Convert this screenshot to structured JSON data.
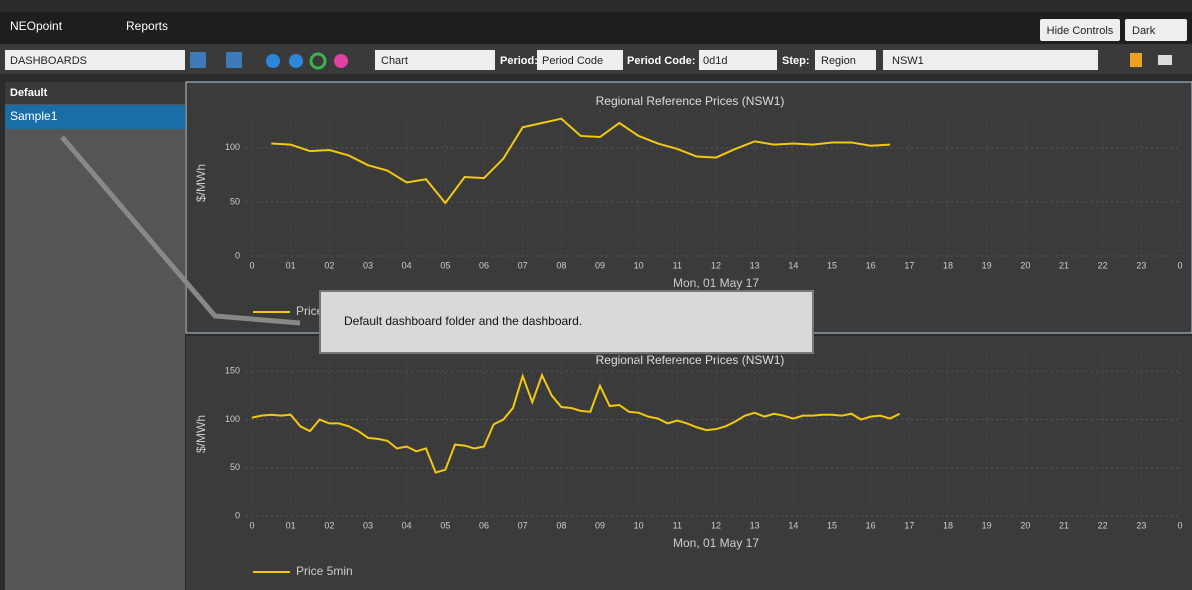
{
  "ui": {
    "header": {
      "brand": "NEOpoint",
      "menu": "Reports",
      "hide_controls": "Hide Controls",
      "theme": "Dark"
    },
    "toolbar": {
      "dashboards": "DASHBOARDS",
      "view": "Chart",
      "period_label": "Period:",
      "period": "Period Code",
      "period_code_label": "Period Code:",
      "period_code": "0d1d",
      "step_label": "Step:",
      "step": "Region",
      "region": "NSW1"
    },
    "sidebar": {
      "folder": "Default",
      "dashboard": "Sample1"
    },
    "callout": "Default dashboard folder and the dashboard."
  },
  "chart_data": [
    {
      "type": "line",
      "title": "Regional Reference Prices (NSW1)",
      "y_label": "$/MWh",
      "x_label": "Mon, 01 May 17",
      "xlim": [
        0,
        24
      ],
      "ylim": [
        0,
        135
      ],
      "yticks": [
        0,
        50,
        100
      ],
      "xticks": [
        0,
        {
          "value": 1,
          "label": "01"
        },
        {
          "value": 2,
          "label": "02"
        },
        {
          "value": 3,
          "label": "03"
        },
        {
          "value": 4,
          "label": "04"
        },
        {
          "value": 5,
          "label": "05"
        },
        {
          "value": 6,
          "label": "06"
        },
        {
          "value": 7,
          "label": "07"
        },
        {
          "value": 8,
          "label": "08"
        },
        {
          "value": 9,
          "label": "09"
        },
        10,
        11,
        12,
        13,
        14,
        15,
        16,
        17,
        18,
        19,
        20,
        21,
        22,
        23,
        {
          "value": 24,
          "label": "0"
        }
      ],
      "grid": true,
      "x": [
        0.5,
        1,
        1.5,
        2,
        2.5,
        3,
        3.5,
        4,
        4.5,
        5,
        5.5,
        6,
        6.5,
        7,
        7.5,
        8,
        8.5,
        9,
        9.5,
        10,
        10.5,
        11,
        11.5,
        12,
        12.5,
        13,
        13.5,
        14,
        14.5,
        15,
        15.5,
        16,
        16.5
      ],
      "series": [
        {
          "name": "Price",
          "color": "#f2c811",
          "values": [
            104,
            103,
            97,
            98,
            93,
            84,
            79,
            68,
            71,
            49,
            73,
            72,
            90,
            119,
            123,
            127,
            111,
            110,
            123,
            111,
            104,
            99,
            92,
            91,
            99,
            106,
            103,
            104,
            103,
            105,
            105,
            102,
            103
          ]
        }
      ]
    },
    {
      "type": "line",
      "title": "Regional Reference Prices (NSW1)",
      "y_label": "$/MWh",
      "x_label": "Mon, 01 May 17",
      "xlim": [
        0,
        24
      ],
      "ylim": [
        0,
        170
      ],
      "yticks": [
        0,
        50,
        100,
        150
      ],
      "xticks": [
        0,
        {
          "value": 1,
          "label": "01"
        },
        {
          "value": 2,
          "label": "02"
        },
        {
          "value": 3,
          "label": "03"
        },
        {
          "value": 4,
          "label": "04"
        },
        {
          "value": 5,
          "label": "05"
        },
        {
          "value": 6,
          "label": "06"
        },
        {
          "value": 7,
          "label": "07"
        },
        {
          "value": 8,
          "label": "08"
        },
        {
          "value": 9,
          "label": "09"
        },
        10,
        11,
        12,
        13,
        14,
        15,
        16,
        17,
        18,
        19,
        20,
        21,
        22,
        23,
        {
          "value": 24,
          "label": "0"
        }
      ],
      "grid": true,
      "x": [
        0,
        0.25,
        0.5,
        0.75,
        1,
        1.25,
        1.5,
        1.75,
        2,
        2.25,
        2.5,
        2.75,
        3,
        3.25,
        3.5,
        3.75,
        4,
        4.25,
        4.5,
        4.75,
        5,
        5.25,
        5.5,
        5.75,
        6,
        6.25,
        6.5,
        6.75,
        7,
        7.25,
        7.5,
        7.75,
        8,
        8.25,
        8.5,
        8.75,
        9,
        9.25,
        9.5,
        9.75,
        10,
        10.25,
        10.5,
        10.75,
        11,
        11.25,
        11.5,
        11.75,
        12,
        12.25,
        12.5,
        12.75,
        13,
        13.25,
        13.5,
        13.75,
        14,
        14.25,
        14.5,
        14.75,
        15,
        15.25,
        15.5,
        15.75,
        16,
        16.25,
        16.5,
        16.75
      ],
      "series": [
        {
          "name": "Price 5min",
          "color": "#f2c811",
          "values": [
            102,
            104,
            105,
            104,
            105,
            93,
            88,
            100,
            96,
            96,
            93,
            88,
            81,
            80,
            78,
            70,
            72,
            67,
            70,
            45,
            48,
            74,
            73,
            70,
            72,
            95,
            100,
            112,
            145,
            118,
            146,
            125,
            113,
            112,
            109,
            108,
            135,
            114,
            115,
            108,
            107,
            103,
            101,
            96,
            99,
            96,
            92,
            89,
            90,
            93,
            98,
            104,
            107,
            103,
            106,
            104,
            101,
            104,
            104,
            105,
            105,
            104,
            106,
            100,
            103,
            104,
            101,
            106
          ]
        }
      ]
    }
  ]
}
